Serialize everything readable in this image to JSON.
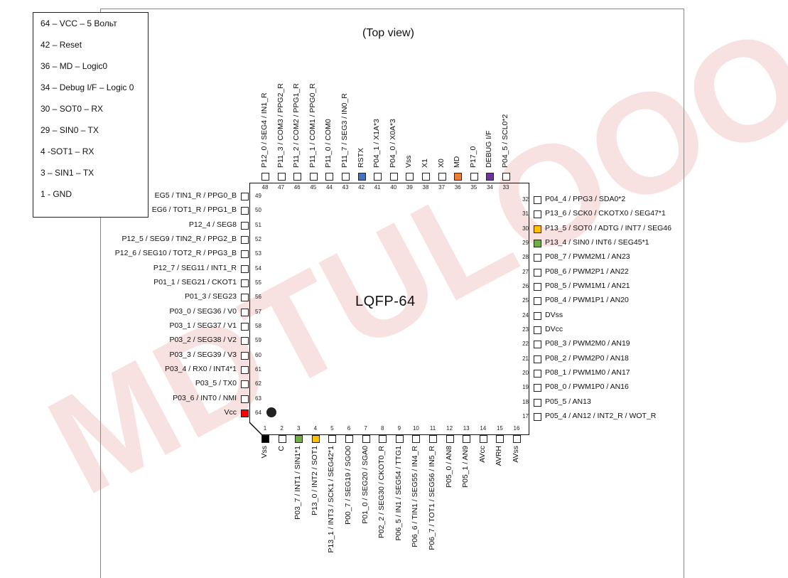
{
  "title": "(Top view)",
  "package": "LQFP-64",
  "watermark": "MDTULOOO",
  "legend": [
    "64 – VCC – 5 Вольт",
    "42 – Reset",
    "36 – MD – Logic0",
    "34 – Debug I/F – Logic 0",
    "30 – SOT0 – RX",
    "29 – SIN0 – TX",
    "4 -SOT1 – RX",
    "3 – SIN1 – TX",
    "1 - GND"
  ],
  "colors": {
    "black": "#000000",
    "green": "#70ad47",
    "gold": "#ffc000",
    "blue": "#4472c4",
    "orange": "#ed7d31",
    "purple": "#7030a0",
    "red": "#ff0000",
    "watermark": "#f3c9c9"
  },
  "pins_left": [
    {
      "n": "49",
      "label": "EG5 / TIN1_R / PPG0_B"
    },
    {
      "n": "50",
      "label": "EG6 / TOT1_R / PPG1_B"
    },
    {
      "n": "51",
      "label": "P12_4 / SEG8"
    },
    {
      "n": "52",
      "label": "P12_5 / SEG9 / TIN2_R / PPG2_B"
    },
    {
      "n": "53",
      "label": "P12_6 / SEG10 / TOT2_R / PPG3_B"
    },
    {
      "n": "54",
      "label": "P12_7 / SEG11 / INT1_R"
    },
    {
      "n": "55",
      "label": "P01_1 / SEG21 / CKOT1"
    },
    {
      "n": "56",
      "label": "P01_3 / SEG23"
    },
    {
      "n": "57",
      "label": "P03_0 / SEG36 / V0"
    },
    {
      "n": "58",
      "label": "P03_1 / SEG37 / V1"
    },
    {
      "n": "59",
      "label": "P03_2 / SEG38 / V2"
    },
    {
      "n": "60",
      "label": "P03_3 / SEG39 / V3"
    },
    {
      "n": "61",
      "label": "P03_4 / RX0 / INT4*1"
    },
    {
      "n": "62",
      "label": "P03_5 / TX0"
    },
    {
      "n": "63",
      "label": "P03_6 / INT0 / NMI"
    },
    {
      "n": "64",
      "label": "Vcc",
      "color": "red"
    }
  ],
  "pins_right": [
    {
      "n": "32",
      "label": "P04_4 / PPG3 / SDA0*2"
    },
    {
      "n": "31",
      "label": "P13_6 / SCK0 / CKOTX0 / SEG47*1"
    },
    {
      "n": "30",
      "label": "P13_5 / SOT0 / ADTG / INT7 / SEG46",
      "color": "gold"
    },
    {
      "n": "29",
      "label": "P13_4 / SIN0 / INT6 / SEG45*1",
      "color": "green"
    },
    {
      "n": "28",
      "label": "P08_7 / PWM2M1 / AN23"
    },
    {
      "n": "27",
      "label": "P08_6 / PWM2P1 / AN22"
    },
    {
      "n": "26",
      "label": "P08_5 / PWM1M1 / AN21"
    },
    {
      "n": "25",
      "label": "P08_4 / PWM1P1 / AN20"
    },
    {
      "n": "24",
      "label": "DVss"
    },
    {
      "n": "23",
      "label": "DVcc"
    },
    {
      "n": "22",
      "label": "P08_3 / PWM2M0 / AN19"
    },
    {
      "n": "21",
      "label": "P08_2 / PWM2P0 / AN18"
    },
    {
      "n": "20",
      "label": "P08_1 / PWM1M0 / AN17"
    },
    {
      "n": "19",
      "label": "P08_0 / PWM1P0 / AN16"
    },
    {
      "n": "18",
      "label": "P05_5 / AN13"
    },
    {
      "n": "17",
      "label": "P05_4 / AN12 / INT2_R / WOT_R"
    }
  ],
  "pins_top": [
    {
      "n": "48",
      "label": "P12_0 / SEG4 / IN1_R"
    },
    {
      "n": "47",
      "label": "P11_3 / COM3 / PPG2_R"
    },
    {
      "n": "46",
      "label": "P11_2 / COM2 / PPG1_R"
    },
    {
      "n": "45",
      "label": "P11_1 / COM1 / PPG0_R"
    },
    {
      "n": "44",
      "label": "P11_0 / COM0"
    },
    {
      "n": "43",
      "label": "P11_7 / SEG3 / IN0_R"
    },
    {
      "n": "42",
      "label": "RSTX",
      "color": "blue"
    },
    {
      "n": "41",
      "label": "P04_1 / X1A*3"
    },
    {
      "n": "40",
      "label": "P04_0 / X0A*3"
    },
    {
      "n": "39",
      "label": "Vss"
    },
    {
      "n": "38",
      "label": "X1"
    },
    {
      "n": "37",
      "label": "X0"
    },
    {
      "n": "36",
      "label": "MD",
      "color": "orange"
    },
    {
      "n": "35",
      "label": "P17_0"
    },
    {
      "n": "34",
      "label": "DEBUG I/F",
      "color": "purple"
    },
    {
      "n": "33",
      "label": "P04_5 / SCL0*2"
    }
  ],
  "pins_bottom": [
    {
      "n": "1",
      "label": "Vss",
      "color": "black"
    },
    {
      "n": "2",
      "label": "C"
    },
    {
      "n": "3",
      "label": "P03_7 / INT1 / SIN1*1",
      "color": "green"
    },
    {
      "n": "4",
      "label": "P13_0 / INT2 / SOT1",
      "color": "gold"
    },
    {
      "n": "5",
      "label": "P13_1 / INT3 / SCK1 / SEG42*1"
    },
    {
      "n": "6",
      "label": "P00_7 / SEG19 / SGO0"
    },
    {
      "n": "7",
      "label": "P01_0 / SEG20 / SGA0"
    },
    {
      "n": "8",
      "label": "P02_2 / SEG30 / CKOT0_R"
    },
    {
      "n": "9",
      "label": "P06_5 / IN1 / SEG54 / TTG1"
    },
    {
      "n": "10",
      "label": "P06_6 / TIN1 / SEG55 / IN4_R"
    },
    {
      "n": "11",
      "label": "P06_7 / TOT1 / SEG56 / IN5_R"
    },
    {
      "n": "12",
      "label": "P05_0 / AN8"
    },
    {
      "n": "13",
      "label": "P05_1 / AN9"
    },
    {
      "n": "14",
      "label": "AVcc"
    },
    {
      "n": "15",
      "label": "AVRH"
    },
    {
      "n": "16",
      "label": "AVss"
    }
  ]
}
